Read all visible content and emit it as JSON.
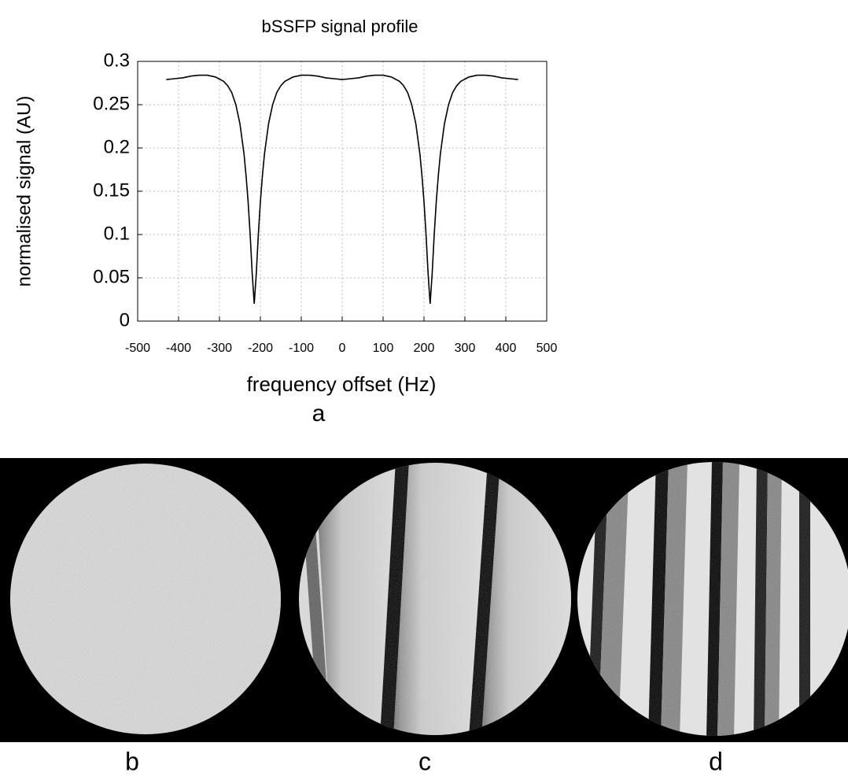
{
  "chart_data": {
    "type": "line",
    "title": "bSSFP signal profile",
    "x_label": "frequency offset (Hz)",
    "y_label": "normalised signal (AU)",
    "x": [
      -430,
      -410,
      -390,
      -370,
      -350,
      -330,
      -310,
      -290,
      -280,
      -270,
      -260,
      -250,
      -240,
      -235,
      -230,
      -225,
      -220,
      -215,
      -210,
      -205,
      -200,
      -195,
      -190,
      -180,
      -170,
      -160,
      -150,
      -140,
      -120,
      -100,
      -80,
      -60,
      -40,
      -20,
      0,
      20,
      40,
      60,
      80,
      100,
      120,
      140,
      150,
      160,
      170,
      180,
      190,
      195,
      200,
      205,
      210,
      215,
      220,
      225,
      230,
      235,
      240,
      250,
      260,
      270,
      280,
      290,
      310,
      330,
      350,
      370,
      390,
      410,
      430
    ],
    "series": [
      {
        "color": "#000000",
        "values": [
          0.279,
          0.28,
          0.281,
          0.283,
          0.284,
          0.284,
          0.282,
          0.277,
          0.272,
          0.264,
          0.25,
          0.228,
          0.193,
          0.168,
          0.138,
          0.1,
          0.055,
          0.02,
          0.055,
          0.1,
          0.138,
          0.168,
          0.193,
          0.228,
          0.25,
          0.264,
          0.272,
          0.277,
          0.282,
          0.284,
          0.284,
          0.283,
          0.281,
          0.28,
          0.279,
          0.28,
          0.281,
          0.283,
          0.284,
          0.284,
          0.282,
          0.277,
          0.272,
          0.264,
          0.25,
          0.228,
          0.193,
          0.168,
          0.138,
          0.1,
          0.055,
          0.02,
          0.055,
          0.1,
          0.138,
          0.168,
          0.193,
          0.228,
          0.25,
          0.264,
          0.272,
          0.277,
          0.282,
          0.284,
          0.284,
          0.283,
          0.281,
          0.28,
          0.279
        ]
      }
    ],
    "xlim": [
      -500,
      500
    ],
    "xticks": [
      -500,
      -400,
      -300,
      -200,
      -100,
      0,
      100,
      200,
      300,
      400,
      500
    ],
    "ylim": [
      0,
      0.3
    ],
    "yticks": [
      0,
      0.05,
      0.1,
      0.15,
      0.2,
      0.25,
      0.3
    ],
    "grid": true
  },
  "panel_labels": [
    "a",
    "b",
    "c",
    "d"
  ]
}
